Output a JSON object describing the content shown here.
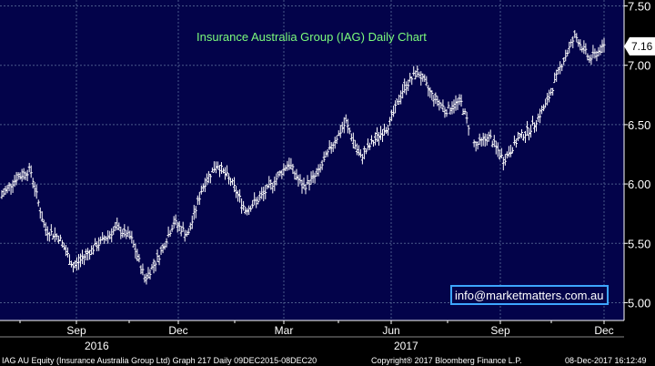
{
  "chart_data": {
    "type": "ohlc",
    "title": "Insurance Australia Group (IAG) Daily Chart",
    "ylim": [
      4.85,
      7.55
    ],
    "yticks": [
      5.0,
      5.5,
      6.0,
      6.5,
      7.0,
      7.5
    ],
    "ytick_labels": [
      "5.00",
      "5.50",
      "6.00",
      "6.50",
      "7.00",
      "7.50"
    ],
    "last_price": 7.16,
    "last_price_label": "7.16",
    "x_month_labels": [
      "Sep",
      "Dec",
      "Mar",
      "Jun",
      "Sep",
      "Dec"
    ],
    "x_year_labels": [
      "2016",
      "2017"
    ],
    "grid": true,
    "watermark": "info@marketmatters.com.au",
    "footer_left": "IAG AU Equity (Insurance Australia Group Ltd) Graph 217  Daily 09DEC2015-08DEC20",
    "footer_mid": "Copyright® 2017 Bloomberg Finance L.P.",
    "footer_right": "08-Dec-2017 16:12:49",
    "colors": {
      "background": "#03034A",
      "grid": "#4A5A8A",
      "bars": "#FFFFFF",
      "title": "#7CFC7C",
      "watermark_border": "#3DA6FF"
    },
    "price_path": [
      {
        "month": "Jun 2016",
        "close": 5.9
      },
      {
        "month": "Jul 2016",
        "close": 6.05
      },
      {
        "month": "Jul 2016",
        "close": 6.12
      },
      {
        "month": "Aug 2016",
        "close": 5.62
      },
      {
        "month": "Aug 2016",
        "close": 5.55
      },
      {
        "month": "Aug 2016",
        "close": 5.3
      },
      {
        "month": "Sep 2016",
        "close": 5.42
      },
      {
        "month": "Sep 2016",
        "close": 5.52
      },
      {
        "month": "Oct 2016",
        "close": 5.63
      },
      {
        "month": "Oct 2016",
        "close": 5.55
      },
      {
        "month": "Nov 2016",
        "close": 5.2
      },
      {
        "month": "Nov 2016",
        "close": 5.4
      },
      {
        "month": "Nov 2016",
        "close": 5.68
      },
      {
        "month": "Dec 2016",
        "close": 5.57
      },
      {
        "month": "Dec 2016",
        "close": 5.98
      },
      {
        "month": "Jan 2017",
        "close": 6.17
      },
      {
        "month": "Jan 2017",
        "close": 6.02
      },
      {
        "month": "Feb 2017",
        "close": 5.78
      },
      {
        "month": "Feb 2017",
        "close": 5.88
      },
      {
        "month": "Feb 2017",
        "close": 6.02
      },
      {
        "month": "Mar 2017",
        "close": 6.18
      },
      {
        "month": "Mar 2017",
        "close": 5.97
      },
      {
        "month": "Apr 2017",
        "close": 6.08
      },
      {
        "month": "Apr 2017",
        "close": 6.32
      },
      {
        "month": "Apr 2017",
        "close": 6.52
      },
      {
        "month": "May 2017",
        "close": 6.22
      },
      {
        "month": "May 2017",
        "close": 6.37
      },
      {
        "month": "May 2017",
        "close": 6.5
      },
      {
        "month": "Jun 2017",
        "close": 6.8
      },
      {
        "month": "Jun 2017",
        "close": 6.95
      },
      {
        "month": "Jul 2017",
        "close": 6.75
      },
      {
        "month": "Jul 2017",
        "close": 6.62
      },
      {
        "month": "Aug 2017",
        "close": 6.7
      },
      {
        "month": "Aug 2017",
        "close": 6.32
      },
      {
        "month": "Aug 2017",
        "close": 6.4
      },
      {
        "month": "Sep 2017",
        "close": 6.2
      },
      {
        "month": "Sep 2017",
        "close": 6.38
      },
      {
        "month": "Oct 2017",
        "close": 6.48
      },
      {
        "month": "Oct 2017",
        "close": 6.68
      },
      {
        "month": "Nov 2017",
        "close": 7.0
      },
      {
        "month": "Nov 2017",
        "close": 7.25
      },
      {
        "month": "Dec 2017",
        "close": 7.05
      },
      {
        "month": "Dec 2017",
        "close": 7.16
      }
    ]
  }
}
